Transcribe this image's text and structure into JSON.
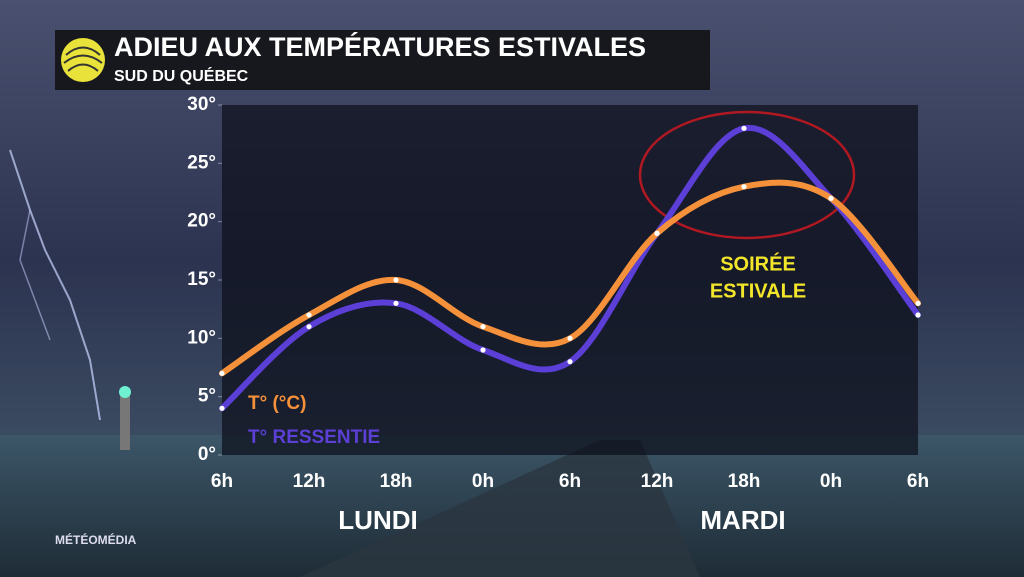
{
  "chart_data": {
    "type": "line",
    "title": "ADIEU AUX TEMPÉRATURES ESTIVALES",
    "subtitle": "SUD DU QUÉBEC",
    "categories": [
      "6h",
      "12h",
      "18h",
      "0h",
      "6h",
      "12h",
      "18h",
      "0h",
      "6h"
    ],
    "day_labels": [
      "LUNDI",
      "MARDI"
    ],
    "series": [
      {
        "name": "T° (°C)",
        "color": "#f5913a",
        "values": [
          7,
          12,
          15,
          11,
          10,
          19,
          23,
          22,
          13
        ]
      },
      {
        "name": "T° RESSENTIE",
        "color": "#5b3fd6",
        "values": [
          4,
          11,
          13,
          9,
          8,
          19,
          28,
          22,
          12
        ]
      }
    ],
    "ylim": [
      0,
      30
    ],
    "yticks": [
      {
        "value": 0,
        "label": "0°"
      },
      {
        "value": 5,
        "label": "5°"
      },
      {
        "value": 10,
        "label": "10°"
      },
      {
        "value": 15,
        "label": "15°"
      },
      {
        "value": 20,
        "label": "20°"
      },
      {
        "value": 25,
        "label": "25°"
      },
      {
        "value": 30,
        "label": "30°"
      }
    ],
    "annotation": [
      "SOIRÉE",
      "ESTIVALE"
    ],
    "source": "MÉTÉOMÉDIA"
  }
}
